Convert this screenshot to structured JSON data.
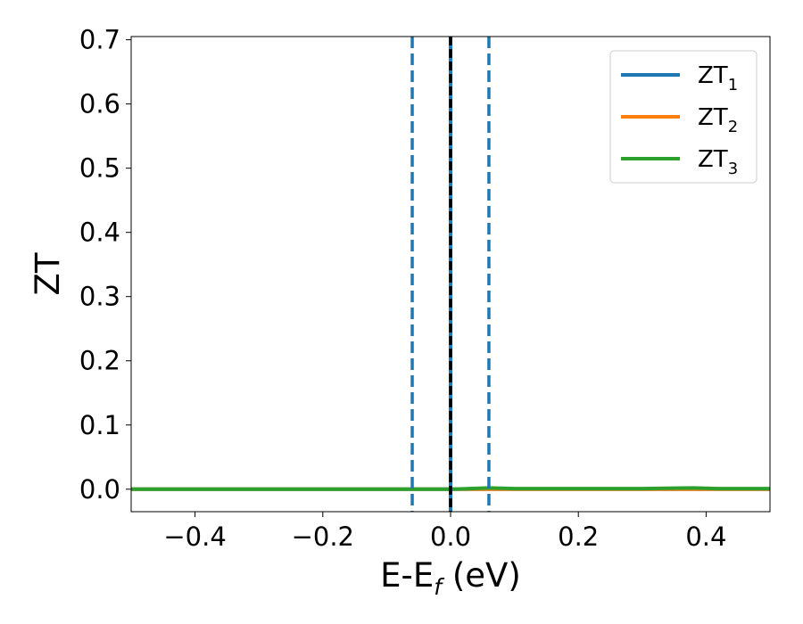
{
  "chart_data": {
    "type": "line",
    "xlabel_main": "E-E",
    "xlabel_sub": "f",
    "xlabel_unit": " (eV)",
    "ylabel": "ZT",
    "xlim": [
      -0.5,
      0.5
    ],
    "ylim": [
      -0.035,
      0.705
    ],
    "xticks": [
      -0.4,
      -0.2,
      0.0,
      0.2,
      0.4
    ],
    "xtick_labels": [
      "−0.4",
      "−0.2",
      "0.0",
      "0.2",
      "0.4"
    ],
    "yticks": [
      0.0,
      0.1,
      0.2,
      0.3,
      0.4,
      0.5,
      0.6,
      0.7
    ],
    "ytick_labels": [
      "0.0",
      "0.1",
      "0.2",
      "0.3",
      "0.4",
      "0.5",
      "0.6",
      "0.7"
    ],
    "grid": false,
    "legend_position": "top-right",
    "series": [
      {
        "label_main": "ZT",
        "label_sub": "1",
        "color": "#1f77b4",
        "x": [
          -0.5,
          -0.3,
          -0.1,
          -0.06,
          0.0,
          0.06,
          0.1,
          0.2,
          0.3,
          0.38,
          0.42,
          0.5
        ],
        "y": [
          0.0,
          0.0,
          0.0,
          0.0,
          0.0,
          0.0,
          0.0,
          0.0,
          0.0,
          0.0,
          0.0,
          0.0
        ]
      },
      {
        "label_main": "ZT",
        "label_sub": "2",
        "color": "#ff7f0e",
        "x": [
          -0.5,
          -0.3,
          -0.1,
          -0.06,
          0.0,
          0.06,
          0.1,
          0.2,
          0.3,
          0.38,
          0.42,
          0.5
        ],
        "y": [
          0.0,
          0.0,
          0.0,
          0.0,
          0.0,
          0.0,
          0.0,
          0.0,
          0.0,
          0.0,
          0.0,
          0.0
        ]
      },
      {
        "label_main": "ZT",
        "label_sub": "3",
        "color": "#2ca02c",
        "x": [
          -0.5,
          -0.3,
          -0.1,
          -0.06,
          0.0,
          0.06,
          0.1,
          0.2,
          0.3,
          0.38,
          0.42,
          0.5
        ],
        "y": [
          0.0,
          0.0,
          0.0,
          0.0,
          0.0,
          0.002,
          0.001,
          0.001,
          0.001,
          0.002,
          0.001,
          0.001
        ]
      }
    ],
    "vlines": [
      {
        "x": -0.06,
        "style": "dashed",
        "color": "#1f77b4"
      },
      {
        "x": 0.06,
        "style": "dashed",
        "color": "#1f77b4"
      },
      {
        "x": 0.0,
        "style": "solid",
        "color": "#1f77b4"
      },
      {
        "x": 0.0,
        "style": "dashed",
        "color": "#000000"
      }
    ]
  }
}
